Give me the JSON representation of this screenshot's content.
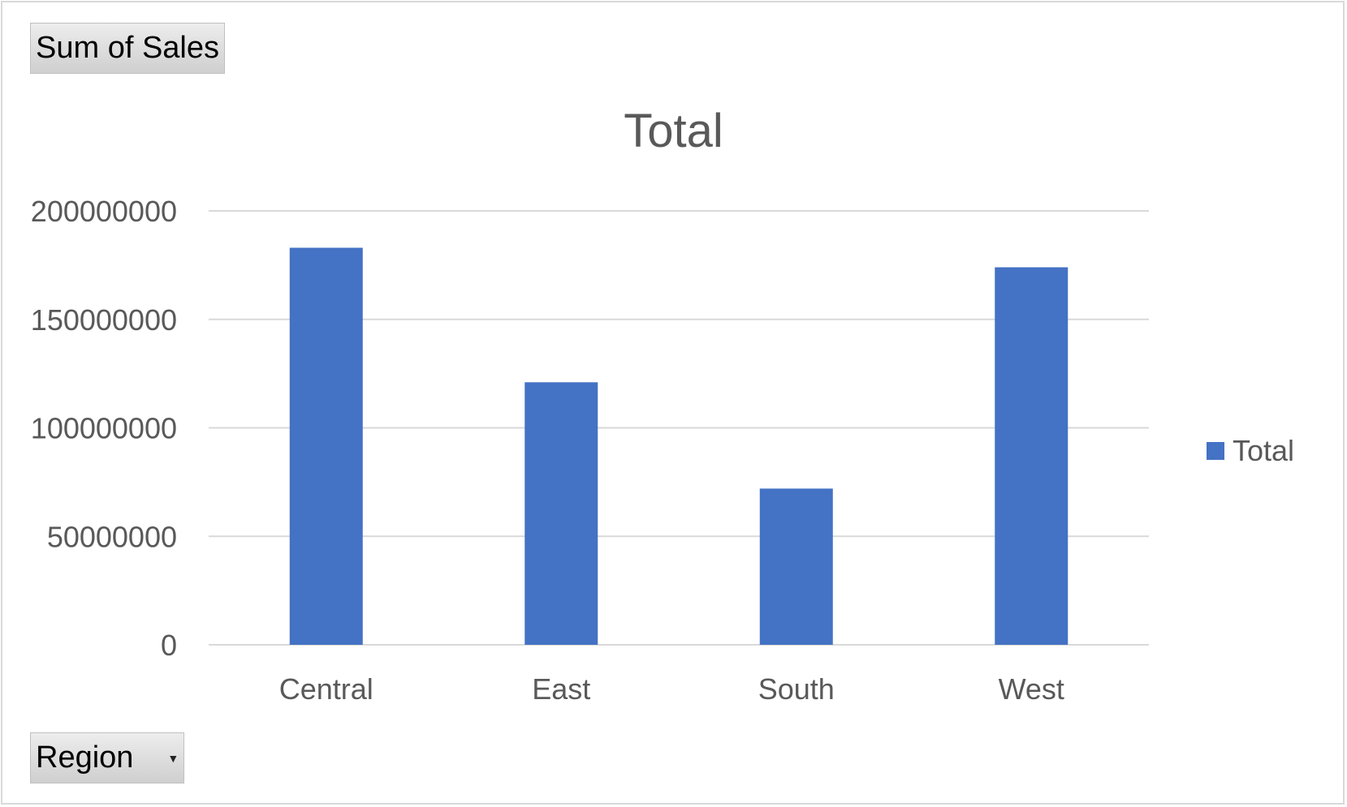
{
  "values_field": {
    "label": "Sum of Sales"
  },
  "axis_field": {
    "label": "Region",
    "dropdown_icon": "chevron-down-icon"
  },
  "colors": {
    "bar": "#4472C4",
    "grid": "#d9d9d9",
    "text": "#595959"
  },
  "chart_data": {
    "type": "bar",
    "title": "Total",
    "categories": [
      "Central",
      "East",
      "South",
      "West"
    ],
    "series": [
      {
        "name": "Total",
        "values": [
          183000000,
          121000000,
          72000000,
          174000000
        ]
      }
    ],
    "ylim": [
      0,
      200000000
    ],
    "yticks": [
      "0",
      "50000000",
      "100000000",
      "150000000",
      "200000000"
    ],
    "xlabel": "",
    "ylabel": "",
    "grid": true,
    "legend_position": "right"
  }
}
